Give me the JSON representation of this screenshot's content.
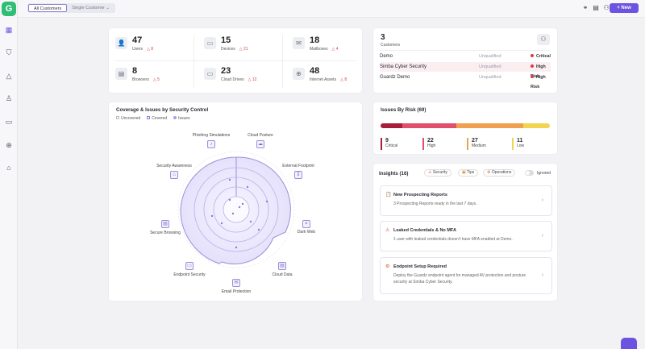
{
  "topbar": {
    "tab_all": "All Customers",
    "tab_single": "Single Customer ⌄",
    "new_label": "+ New"
  },
  "stats": [
    {
      "num": "47",
      "label": "Users",
      "warn": "△ 8",
      "icon": "👤"
    },
    {
      "num": "15",
      "label": "Devices",
      "warn": "△ 21",
      "icon": "▭"
    },
    {
      "num": "18",
      "label": "Mailboxes",
      "warn": "△ 4",
      "icon": "✉"
    },
    {
      "num": "8",
      "label": "Browsers",
      "warn": "△ 5",
      "icon": "▤"
    },
    {
      "num": "23",
      "label": "Cloud Drives",
      "warn": "△ 12",
      "icon": "▭"
    },
    {
      "num": "48",
      "label": "Internet Assets",
      "warn": "△ 8",
      "icon": "⊕"
    }
  ],
  "customers": {
    "count": "3",
    "label": "Customers",
    "rows": [
      {
        "name": "Demo",
        "status": "Unqualified",
        "risk": "Critical Risk"
      },
      {
        "name": "Simba Cyber Security",
        "status": "Unqualified",
        "risk": "High Risk"
      },
      {
        "name": "Guardz Demo",
        "status": "Unqualified",
        "risk": "High Risk"
      }
    ]
  },
  "coverage": {
    "title": "Coverage & Issues by Security Control",
    "legend": [
      "Uncovered",
      "Covered",
      "Issues"
    ],
    "labels": [
      "Phishing Simulations",
      "Cloud Posture",
      "External Footprint",
      "Dark Web",
      "Cloud Data",
      "Email Protection",
      "Endpoint Security",
      "Secure Browsing",
      "Security Awareness"
    ]
  },
  "issues": {
    "title": "Issues By Risk (69)",
    "levels": [
      {
        "num": "9",
        "label": "Critical",
        "color": "#a81d3a",
        "value": 9
      },
      {
        "num": "22",
        "label": "High",
        "color": "#e0506a",
        "value": 22
      },
      {
        "num": "27",
        "label": "Medium",
        "color": "#f0a050",
        "value": 27
      },
      {
        "num": "11",
        "label": "Low",
        "color": "#f2d450",
        "value": 11
      }
    ]
  },
  "insights": {
    "title": "Insights (16)",
    "filters": [
      "Security",
      "Tips",
      "Operations"
    ],
    "ignored": "Ignored",
    "items": [
      {
        "title": "New Prospecting Reports",
        "desc": "3 Prospecting Reports ready in the last 7 days.",
        "icon": "📋"
      },
      {
        "title": "Leaked Credentials & No MFA",
        "desc": "1 user with leaked credentials doesn't have MFA enabled at Demo.",
        "icon": "⚠"
      },
      {
        "title": "Endpoint Setup Required",
        "desc": "Deploy the Guardz endpoint agent for managed AV protection and posture security at Simba Cyber Security.",
        "icon": "⚙"
      }
    ]
  },
  "colors": {
    "accent": "#6c54e0",
    "brand": "#2fbe74"
  }
}
